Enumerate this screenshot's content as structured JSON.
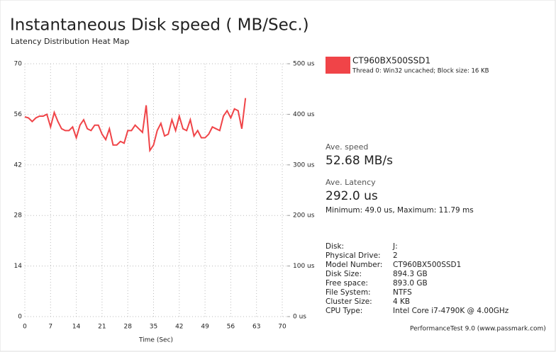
{
  "chart_data": {
    "type": "line",
    "title": "Instantaneous Disk speed ( MB/Sec.)",
    "subtitle": "Latency Distribution Heat Map",
    "x_label": "Time (Sec)",
    "x": [
      0,
      1,
      2,
      3,
      4,
      5,
      6,
      7,
      8,
      9,
      10,
      11,
      12,
      13,
      14,
      15,
      16,
      17,
      18,
      19,
      20,
      21,
      22,
      23,
      24,
      25,
      26,
      27,
      28,
      29,
      30,
      31,
      32,
      33,
      34,
      35,
      36,
      37,
      38,
      39,
      40,
      41,
      42,
      43,
      44,
      45,
      46,
      47,
      48,
      49,
      50,
      51,
      52,
      53,
      54,
      55,
      56,
      57,
      58,
      59,
      60
    ],
    "series": [
      {
        "name": "CT960BX500SSD1",
        "detail": "Thread 0: Win32 uncached; Block size: 16 KB",
        "color": "#f04448",
        "values": [
          55.3,
          55,
          54,
          55,
          55.5,
          55.5,
          56,
          52.5,
          56.5,
          54,
          52,
          51.5,
          51.5,
          52.5,
          49.5,
          53,
          54.5,
          52,
          51.5,
          53,
          53,
          50.5,
          49,
          52,
          47.5,
          47.5,
          48.5,
          48,
          51.5,
          51.5,
          53,
          52,
          51,
          58.5,
          46,
          47.5,
          51.5,
          53.5,
          50,
          50.5,
          54.5,
          51.5,
          55.5,
          52,
          51.5,
          54.5,
          50,
          51.5,
          49.5,
          49.5,
          50.5,
          52.5,
          52,
          51.5,
          55.5,
          57,
          55,
          57.5,
          57,
          52,
          60.5
        ]
      }
    ],
    "xlim": [
      0,
      70
    ],
    "xticks": [
      0,
      7,
      14,
      21,
      28,
      35,
      42,
      49,
      56,
      63,
      70
    ],
    "ylim": [
      0,
      70
    ],
    "yticks": [
      0,
      14,
      28,
      42,
      56,
      70
    ],
    "y2lim": [
      0,
      500
    ],
    "y2ticks": [
      {
        "value": 0,
        "label": "0 us"
      },
      {
        "value": 100,
        "label": "100 us"
      },
      {
        "value": 200,
        "label": "200 us"
      },
      {
        "value": 300,
        "label": "300 us"
      },
      {
        "value": 400,
        "label": "400 us"
      },
      {
        "value": 500,
        "label": "500 us"
      }
    ],
    "grid": true
  },
  "panel": {
    "speed_label": "Ave. speed",
    "speed": "52.68 MB/s",
    "latency_label": "Ave. Latency",
    "latency": "292.0 us",
    "minmax": "Minimum: 49.0 us, Maximum: 11.79 ms",
    "info": [
      {
        "label": "Disk:",
        "value": "J:"
      },
      {
        "label": "Physical Drive:",
        "value": "2"
      },
      {
        "label": "Model Number:",
        "value": "CT960BX500SSD1"
      },
      {
        "label": "Disk Size:",
        "value": "894.3 GB"
      },
      {
        "label": "Free space:",
        "value": "893.0 GB"
      },
      {
        "label": "File System:",
        "value": "NTFS"
      },
      {
        "label": "Cluster Size:",
        "value": "4 KB"
      },
      {
        "label": "CPU Type:",
        "value": "Intel Core i7-4790K @ 4.00GHz"
      }
    ],
    "footer": "PerformanceTest 9.0 (www.passmark.com)"
  }
}
